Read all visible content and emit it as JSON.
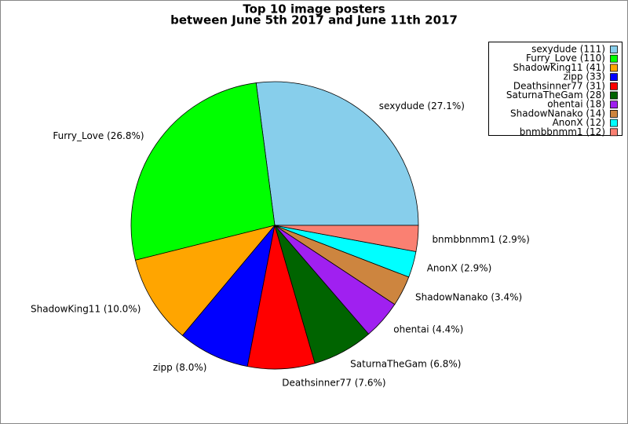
{
  "chart_data": {
    "type": "pie",
    "title": "Top 10 image posters",
    "subtitle": "between June 5th 2017 and June 11th 2017",
    "values": [
      111,
      110,
      41,
      33,
      31,
      28,
      18,
      14,
      12,
      12
    ],
    "slice_labels": [
      "sexydude (27.1%)",
      "Furry_Love (26.8%)",
      "ShadowKing11 (10.0%)",
      "zipp (8.0%)",
      "Deathsinner77 (7.6%)",
      "SaturnaTheGam (6.8%)",
      "ohentai (4.4%)",
      "ShadowNanako (3.4%)",
      "AnonX (2.9%)",
      "bnmbbnmm1 (2.9%)"
    ],
    "legend_labels": [
      "sexydude (111)",
      "Furry_Love (110)",
      "ShadowKing11 (41)",
      "zipp (33)",
      "Deathsinner77 (31)",
      "SaturnaTheGam (28)",
      "ohentai (18)",
      "ShadowNanako (14)",
      "AnonX (12)",
      "bnmbbnmm1 (12)"
    ],
    "colors": [
      "#87ceeb",
      "#00ff00",
      "#ffa500",
      "#0000ff",
      "#ff0000",
      "#006400",
      "#a020f0",
      "#cd853f",
      "#00ffff",
      "#fa8072"
    ],
    "legend_position": "upper right"
  }
}
